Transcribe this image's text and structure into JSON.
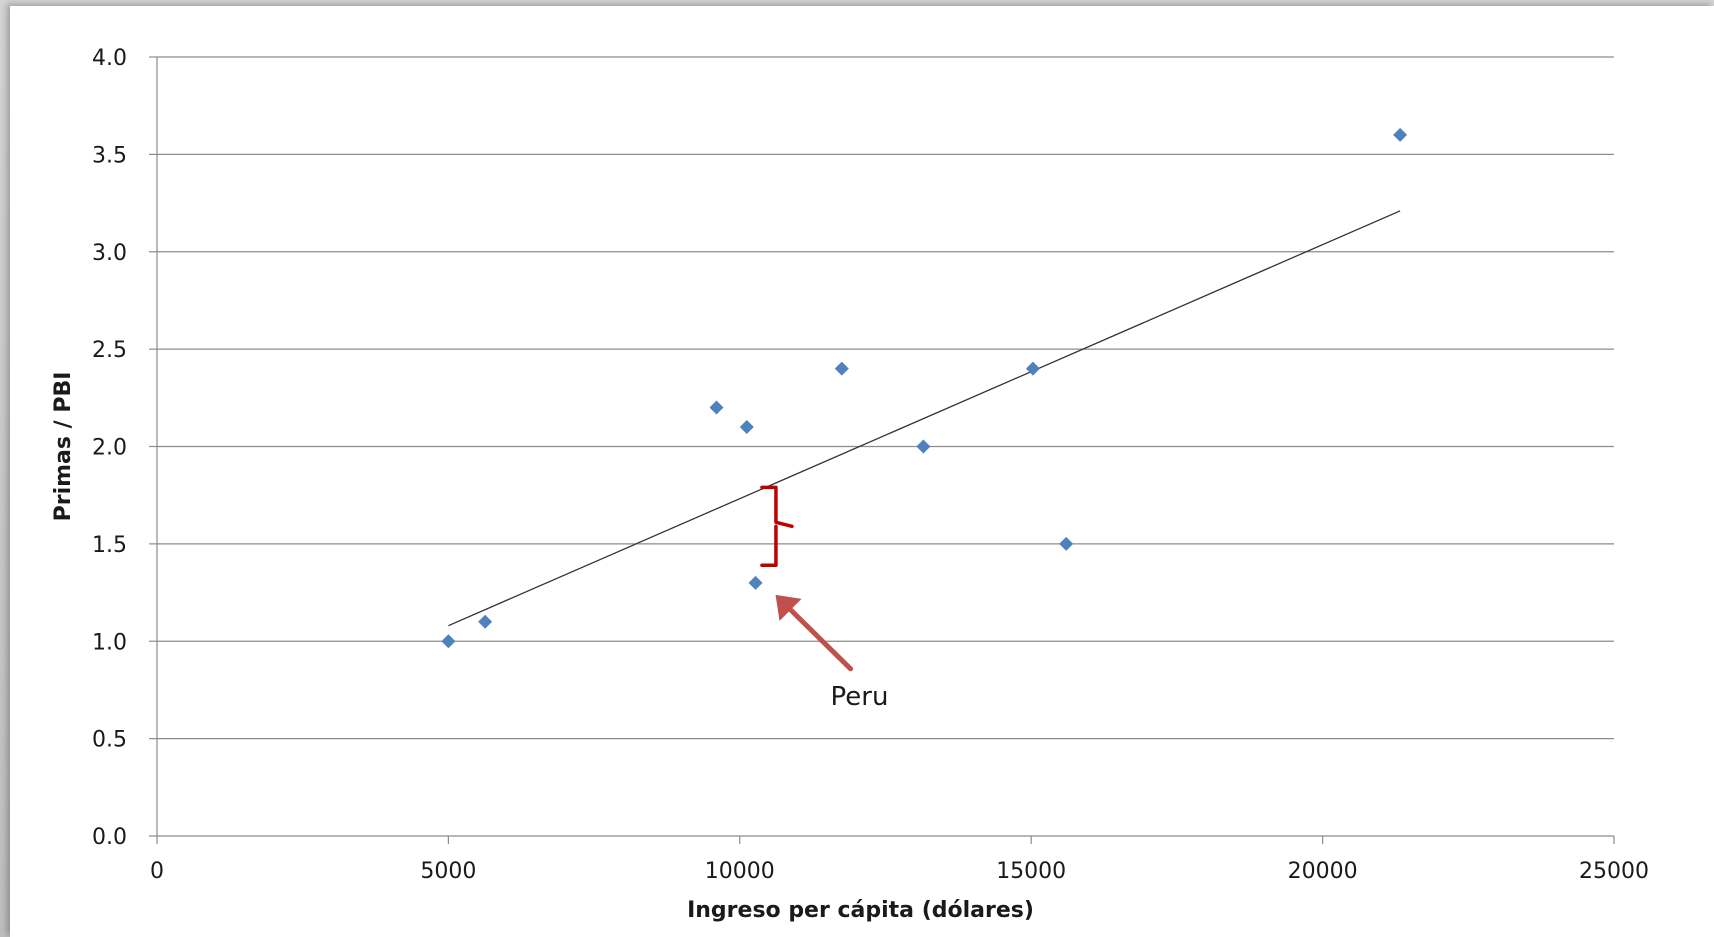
{
  "chart_data": {
    "type": "scatter",
    "title": "",
    "xlabel": "Ingreso per cápita (dólares)",
    "ylabel": "Primas / PBI",
    "xlim": [
      0,
      25000
    ],
    "ylim": [
      0.0,
      4.0
    ],
    "x_ticks": [
      "0",
      "5000",
      "10000",
      "15000",
      "20000",
      "25000"
    ],
    "y_ticks": [
      "0.0",
      "0.5",
      "1.0",
      "1.5",
      "2.0",
      "2.5",
      "3.0",
      "3.5",
      "4.0"
    ],
    "x_tick_values": [
      0,
      5000,
      10000,
      15000,
      20000,
      25000
    ],
    "y_tick_values": [
      0.0,
      0.5,
      1.0,
      1.5,
      2.0,
      2.5,
      3.0,
      3.5,
      4.0
    ],
    "grid": "horizontal",
    "marker": "diamond",
    "marker_color": "#4f81bd",
    "points": [
      {
        "x": 5000,
        "y": 1.0
      },
      {
        "x": 5630,
        "y": 1.1
      },
      {
        "x": 9600,
        "y": 2.2
      },
      {
        "x": 10120,
        "y": 2.1
      },
      {
        "x": 10270,
        "y": 1.3
      },
      {
        "x": 11750,
        "y": 2.4
      },
      {
        "x": 13150,
        "y": 2.0
      },
      {
        "x": 15030,
        "y": 2.4
      },
      {
        "x": 15600,
        "y": 1.5
      },
      {
        "x": 21330,
        "y": 3.6
      }
    ],
    "trendline": {
      "type": "linear",
      "color": "#333333",
      "x": [
        5000,
        21330
      ],
      "y": [
        1.08,
        3.21
      ]
    },
    "annotations": [
      {
        "text": "Peru",
        "target": {
          "x": 10270,
          "y": 1.3
        },
        "arrow_color": "#c0504d"
      },
      {
        "type": "brace",
        "x": 10500,
        "y_range": [
          1.39,
          1.79
        ],
        "color": "#c00000"
      }
    ]
  }
}
